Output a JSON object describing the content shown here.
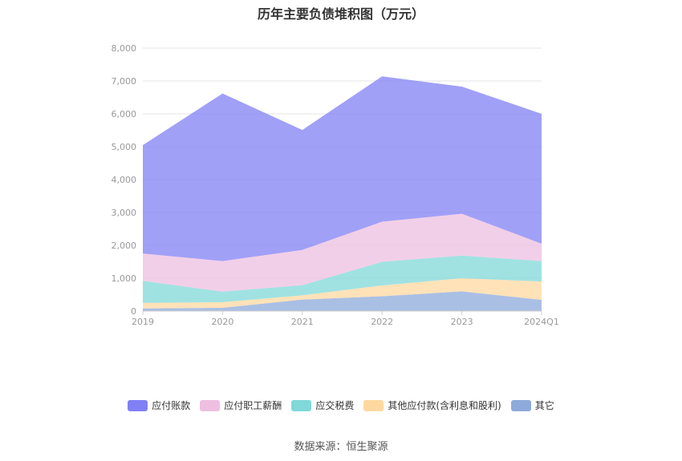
{
  "chart_data": {
    "type": "area",
    "stacked": true,
    "title": "历年主要负债堆积图（万元）",
    "categories": [
      "2019",
      "2020",
      "2021",
      "2022",
      "2023",
      "2024Q1"
    ],
    "yticks": [
      "0",
      "1,000",
      "2,000",
      "3,000",
      "4,000",
      "5,000",
      "6,000",
      "7,000",
      "8,000"
    ],
    "ylim": [
      0,
      8000
    ],
    "grid": true,
    "legend_position": "bottom",
    "series": [
      {
        "name": "其它",
        "color": "#8eaadb",
        "values": [
          80,
          100,
          350,
          450,
          600,
          340
        ]
      },
      {
        "name": "其他应付款(含利息和股利)",
        "color": "#ffd8a0",
        "values": [
          170,
          170,
          130,
          330,
          400,
          560
        ]
      },
      {
        "name": "应交税费",
        "color": "#80d8d8",
        "values": [
          670,
          320,
          310,
          720,
          690,
          620
        ]
      },
      {
        "name": "应付职工薪酬",
        "color": "#eebfe0",
        "values": [
          830,
          930,
          1070,
          1220,
          1270,
          530
        ]
      },
      {
        "name": "应付账款",
        "color": "#8080f4",
        "values": [
          3300,
          5100,
          3650,
          4420,
          3870,
          3950
        ]
      }
    ]
  },
  "source": "数据来源：恒生聚源"
}
